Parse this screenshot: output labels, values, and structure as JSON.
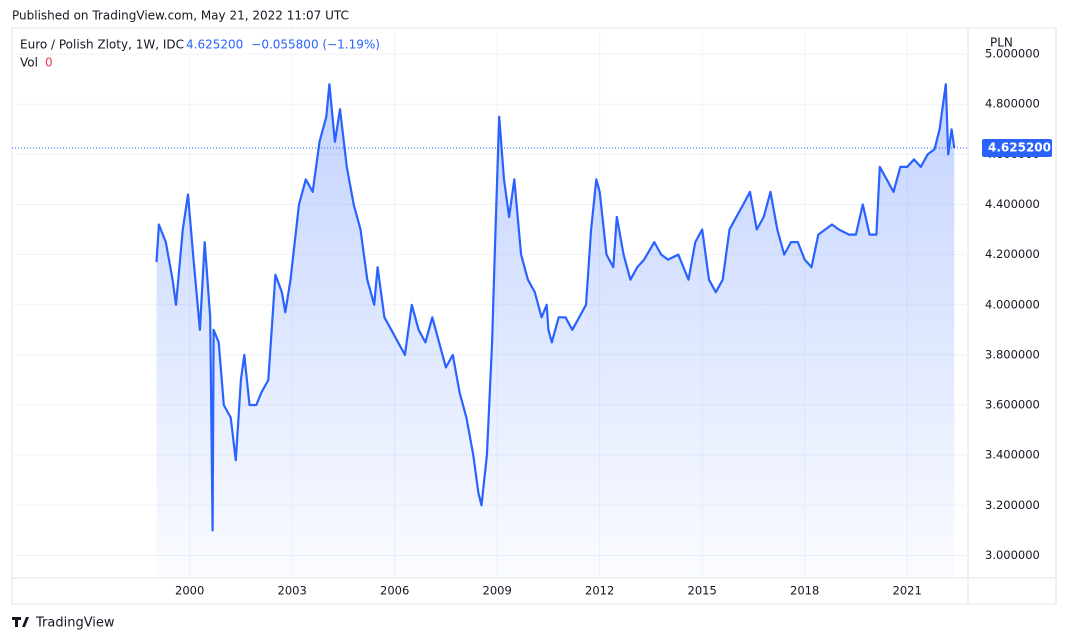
{
  "chart_data": {
    "type": "line",
    "published": "Published on TradingView.com, May 21, 2022 11:07 UTC",
    "symbol": "Euro / Polish Zloty, 1W, IDC",
    "last": {
      "value": 4.6252,
      "label": "4.625200"
    },
    "change": "−0.055800 (−1.19%)",
    "vol_label": "Vol",
    "vol_value": "0",
    "currency": "PLN",
    "brand": "TradingView",
    "color": "#2962ff",
    "grid": true,
    "xlim": [
      1994.8,
      2022.78
    ],
    "ylim": [
      2.91,
      5.1
    ],
    "xticks": [
      2000,
      2003,
      2006,
      2009,
      2012,
      2015,
      2018,
      2021
    ],
    "yticks": [
      {
        "value": 3.0,
        "label": "3.000000"
      },
      {
        "value": 3.2,
        "label": "3.200000"
      },
      {
        "value": 3.4,
        "label": "3.400000"
      },
      {
        "value": 3.6,
        "label": "3.600000"
      },
      {
        "value": 3.8,
        "label": "3.800000"
      },
      {
        "value": 4.0,
        "label": "4.000000"
      },
      {
        "value": 4.2,
        "label": "4.200000"
      },
      {
        "value": 4.4,
        "label": "4.400000"
      },
      {
        "value": 4.6,
        "label": "4.600000"
      },
      {
        "value": 4.8,
        "label": "4.800000"
      },
      {
        "value": 5.0,
        "label": "5.000000"
      }
    ],
    "x": [
      1999.03,
      1999.1,
      1999.3,
      1999.5,
      1999.6,
      1999.8,
      1999.95,
      2000.1,
      2000.2,
      2000.3,
      2000.44,
      2000.6,
      2000.67,
      2000.7,
      2000.85,
      2001.0,
      2001.2,
      2001.35,
      2001.5,
      2001.6,
      2001.75,
      2001.95,
      2002.1,
      2002.3,
      2002.51,
      2002.7,
      2002.8,
      2002.95,
      2003.2,
      2003.4,
      2003.6,
      2003.8,
      2004.0,
      2004.09,
      2004.25,
      2004.4,
      2004.6,
      2004.8,
      2005.0,
      2005.2,
      2005.4,
      2005.5,
      2005.7,
      2005.9,
      2006.1,
      2006.3,
      2006.5,
      2006.7,
      2006.9,
      2007.1,
      2007.3,
      2007.5,
      2007.7,
      2007.9,
      2008.1,
      2008.3,
      2008.45,
      2008.54,
      2008.7,
      2008.85,
      2008.95,
      2009.06,
      2009.2,
      2009.35,
      2009.5,
      2009.7,
      2009.9,
      2010.1,
      2010.3,
      2010.45,
      2010.5,
      2010.6,
      2010.8,
      2011.0,
      2011.2,
      2011.4,
      2011.6,
      2011.75,
      2011.9,
      2012.0,
      2012.2,
      2012.4,
      2012.5,
      2012.7,
      2012.9,
      2013.1,
      2013.3,
      2013.6,
      2013.8,
      2014.0,
      2014.3,
      2014.6,
      2014.8,
      2015.0,
      2015.2,
      2015.4,
      2015.6,
      2015.8,
      2016.0,
      2016.2,
      2016.4,
      2016.6,
      2016.8,
      2017.0,
      2017.2,
      2017.4,
      2017.6,
      2017.8,
      2018.0,
      2018.2,
      2018.4,
      2018.6,
      2018.8,
      2019.0,
      2019.3,
      2019.5,
      2019.7,
      2019.9,
      2020.1,
      2020.2,
      2020.4,
      2020.6,
      2020.8,
      2021.0,
      2021.2,
      2021.4,
      2021.6,
      2021.8,
      2021.95,
      2022.13,
      2022.2,
      2022.3,
      2022.38
    ],
    "series": [
      {
        "name": "Euro / Polish Zloty",
        "color": "#2962ff",
        "values": [
          4.17,
          4.32,
          4.25,
          4.1,
          4.0,
          4.3,
          4.44,
          4.2,
          4.05,
          3.9,
          4.25,
          3.95,
          3.1,
          3.9,
          3.85,
          3.6,
          3.55,
          3.38,
          3.7,
          3.8,
          3.6,
          3.6,
          3.65,
          3.7,
          4.12,
          4.05,
          3.97,
          4.1,
          4.4,
          4.5,
          4.45,
          4.65,
          4.75,
          4.88,
          4.65,
          4.78,
          4.55,
          4.4,
          4.3,
          4.1,
          4.0,
          4.15,
          3.95,
          3.9,
          3.85,
          3.8,
          4.0,
          3.9,
          3.85,
          3.95,
          3.85,
          3.75,
          3.8,
          3.65,
          3.55,
          3.4,
          3.25,
          3.2,
          3.4,
          3.85,
          4.3,
          4.75,
          4.5,
          4.35,
          4.5,
          4.2,
          4.1,
          4.05,
          3.95,
          4.0,
          3.9,
          3.85,
          3.95,
          3.95,
          3.9,
          3.95,
          4.0,
          4.3,
          4.5,
          4.45,
          4.2,
          4.15,
          4.35,
          4.2,
          4.1,
          4.15,
          4.18,
          4.25,
          4.2,
          4.18,
          4.2,
          4.1,
          4.25,
          4.3,
          4.1,
          4.05,
          4.1,
          4.3,
          4.35,
          4.4,
          4.45,
          4.3,
          4.35,
          4.45,
          4.3,
          4.2,
          4.25,
          4.25,
          4.18,
          4.15,
          4.28,
          4.3,
          4.32,
          4.3,
          4.28,
          4.28,
          4.4,
          4.28,
          4.28,
          4.55,
          4.5,
          4.45,
          4.55,
          4.55,
          4.58,
          4.55,
          4.6,
          4.62,
          4.7,
          4.88,
          4.6,
          4.7,
          4.6252
        ]
      }
    ]
  }
}
